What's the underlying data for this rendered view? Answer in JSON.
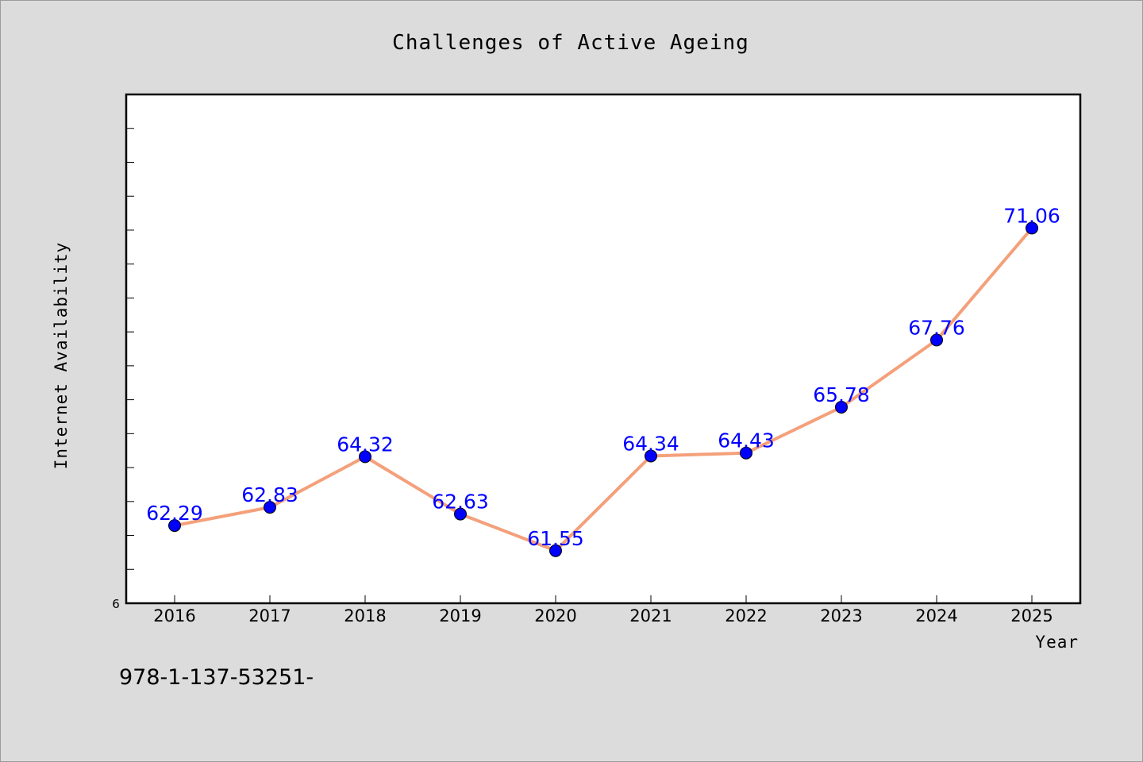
{
  "chart_data": {
    "type": "line",
    "title": "Challenges of Active Ageing",
    "xlabel": "Year",
    "ylabel": "Internet Availability",
    "categories": [
      "2016",
      "2017",
      "2018",
      "2019",
      "2020",
      "2021",
      "2022",
      "2023",
      "2024",
      "2025"
    ],
    "series": [
      {
        "values": [
          62.29,
          62.83,
          64.32,
          62.63,
          61.55,
          64.34,
          64.43,
          65.78,
          67.76,
          71.06
        ]
      }
    ],
    "y_axis_label_bottom": "6",
    "ylim": [
      60,
      75
    ],
    "grid": false,
    "line_color": "#f4a07a",
    "marker_color": "#0000ff",
    "label_color": "#0000ff"
  },
  "footer": {
    "isbn": "978-1-137-53251-"
  }
}
